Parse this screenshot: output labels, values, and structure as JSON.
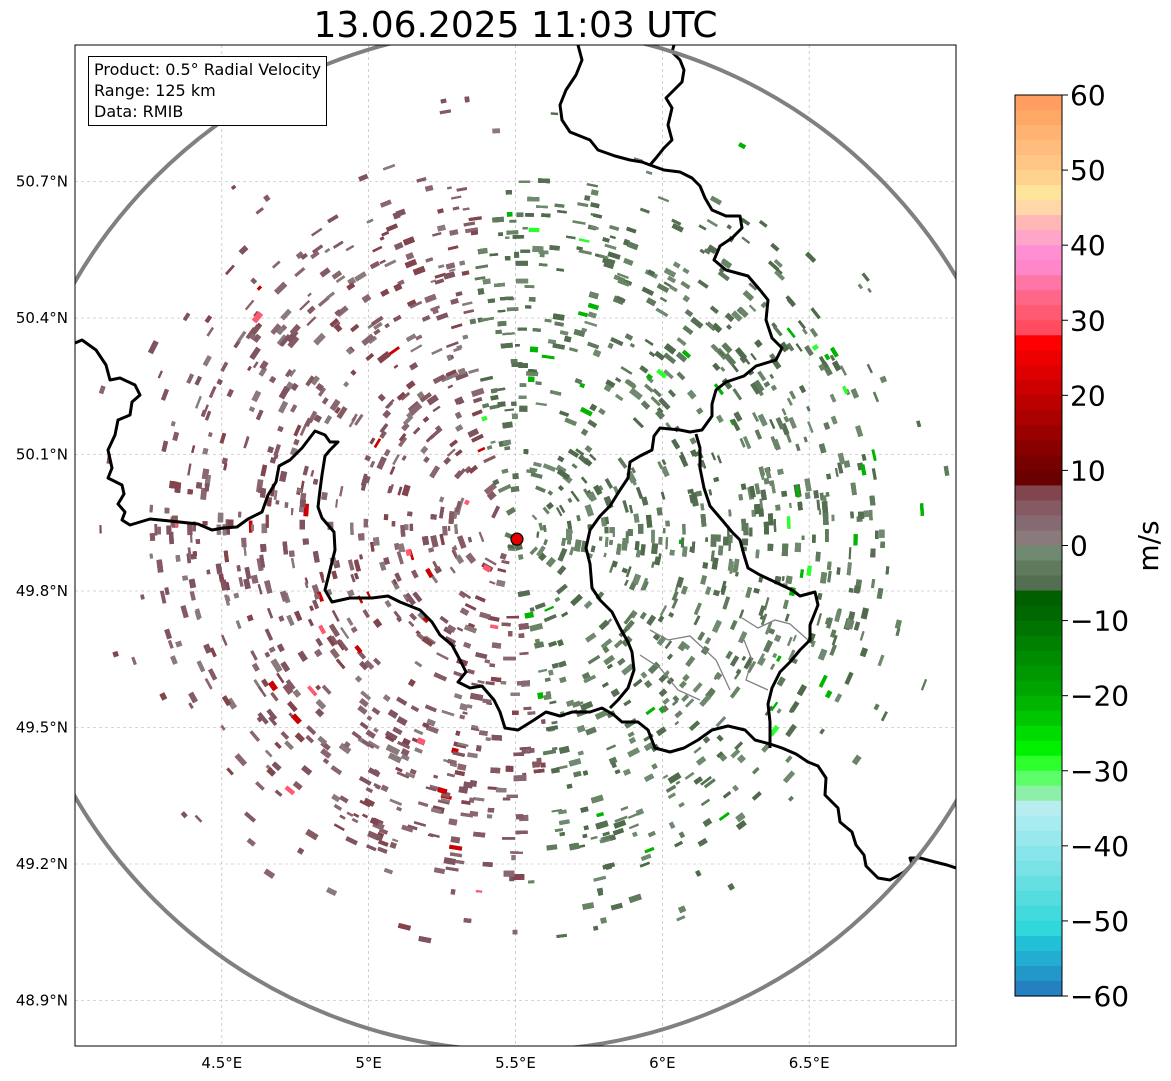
{
  "title": "13.06.2025 11:03 UTC",
  "info": {
    "product": "Product: 0.5° Radial Velocity",
    "range": "Range: 125 km",
    "source": "Data: RMIB"
  },
  "map": {
    "lon_range": [
      4.0,
      7.0
    ],
    "lat_range": [
      48.8,
      51.0
    ],
    "lon_ticks": [
      {
        "value": 4.5,
        "label": "4.5°E"
      },
      {
        "value": 5.0,
        "label": "5°E"
      },
      {
        "value": 5.5,
        "label": "5.5°E"
      },
      {
        "value": 6.0,
        "label": "6°E"
      },
      {
        "value": 6.5,
        "label": "6.5°E"
      }
    ],
    "lat_ticks": [
      {
        "value": 50.7,
        "label": "50.7°N"
      },
      {
        "value": 50.4,
        "label": "50.4°N"
      },
      {
        "value": 50.1,
        "label": "50.1°N"
      },
      {
        "value": 49.8,
        "label": "49.8°N"
      },
      {
        "value": 49.5,
        "label": "49.5°N"
      },
      {
        "value": 49.2,
        "label": "49.2°N"
      },
      {
        "value": 48.9,
        "label": "48.9°N"
      }
    ],
    "grid": true,
    "radar_site": {
      "lon": 5.505,
      "lat": 49.914
    },
    "range_km": 125,
    "colors": {
      "range_ring": "#808080",
      "border": "#000000",
      "sub_border": "#808080",
      "radar_marker": "#e00000",
      "inbound_tone": "#5f7a5c",
      "outbound_tone": "#855a63"
    }
  },
  "colorbar": {
    "label": "m/s",
    "min": -60,
    "max": 60,
    "ticks": [
      {
        "value": 60,
        "label": "60"
      },
      {
        "value": 50,
        "label": "50"
      },
      {
        "value": 40,
        "label": "40"
      },
      {
        "value": 30,
        "label": "30"
      },
      {
        "value": 20,
        "label": "20"
      },
      {
        "value": 10,
        "label": "10"
      },
      {
        "value": 0,
        "label": "0"
      },
      {
        "value": -10,
        "label": "−10"
      },
      {
        "value": -20,
        "label": "−20"
      },
      {
        "value": -30,
        "label": "−30"
      },
      {
        "value": -40,
        "label": "−40"
      },
      {
        "value": -50,
        "label": "−50"
      },
      {
        "value": -60,
        "label": "−60"
      }
    ],
    "bands": [
      {
        "from": 58,
        "to": 60,
        "color": "#ff9e5e"
      },
      {
        "from": 56,
        "to": 58,
        "color": "#ffa866"
      },
      {
        "from": 54,
        "to": 56,
        "color": "#ffb372"
      },
      {
        "from": 52,
        "to": 54,
        "color": "#ffbc7c"
      },
      {
        "from": 50,
        "to": 52,
        "color": "#ffc685"
      },
      {
        "from": 48,
        "to": 50,
        "color": "#ffd28e"
      },
      {
        "from": 46,
        "to": 48,
        "color": "#ffe59c"
      },
      {
        "from": 44,
        "to": 46,
        "color": "#ffd7a8"
      },
      {
        "from": 42,
        "to": 44,
        "color": "#ffb6b6"
      },
      {
        "from": 40,
        "to": 42,
        "color": "#ffa6c8"
      },
      {
        "from": 38,
        "to": 40,
        "color": "#ff8ed2"
      },
      {
        "from": 36,
        "to": 38,
        "color": "#ff86c8"
      },
      {
        "from": 34,
        "to": 36,
        "color": "#ff76a6"
      },
      {
        "from": 32,
        "to": 34,
        "color": "#ff6688"
      },
      {
        "from": 30,
        "to": 32,
        "color": "#ff5a72"
      },
      {
        "from": 28,
        "to": 30,
        "color": "#ff4c60"
      },
      {
        "from": 26,
        "to": 28,
        "color": "#ff0000"
      },
      {
        "from": 24,
        "to": 26,
        "color": "#ee0000"
      },
      {
        "from": 22,
        "to": 24,
        "color": "#de0000"
      },
      {
        "from": 20,
        "to": 22,
        "color": "#cc0000"
      },
      {
        "from": 18,
        "to": 20,
        "color": "#bb0000"
      },
      {
        "from": 16,
        "to": 18,
        "color": "#aa0000"
      },
      {
        "from": 14,
        "to": 16,
        "color": "#990000"
      },
      {
        "from": 12,
        "to": 14,
        "color": "#880000"
      },
      {
        "from": 10,
        "to": 12,
        "color": "#770000"
      },
      {
        "from": 8,
        "to": 10,
        "color": "#6a0000"
      },
      {
        "from": 6,
        "to": 8,
        "color": "#82444d"
      },
      {
        "from": 4,
        "to": 6,
        "color": "#855a63"
      },
      {
        "from": 2,
        "to": 4,
        "color": "#856a74"
      },
      {
        "from": 0,
        "to": 2,
        "color": "#8a7a7c"
      },
      {
        "from": -2,
        "to": 0,
        "color": "#6f8a70"
      },
      {
        "from": -4,
        "to": -2,
        "color": "#5f7a5c"
      },
      {
        "from": -6,
        "to": -4,
        "color": "#536e50"
      },
      {
        "from": -8,
        "to": -6,
        "color": "#006000"
      },
      {
        "from": -10,
        "to": -8,
        "color": "#006800"
      },
      {
        "from": -12,
        "to": -10,
        "color": "#007400"
      },
      {
        "from": -14,
        "to": -12,
        "color": "#008000"
      },
      {
        "from": -16,
        "to": -14,
        "color": "#008c00"
      },
      {
        "from": -18,
        "to": -16,
        "color": "#009800"
      },
      {
        "from": -20,
        "to": -18,
        "color": "#00a400"
      },
      {
        "from": -22,
        "to": -20,
        "color": "#00b400"
      },
      {
        "from": -24,
        "to": -22,
        "color": "#00c600"
      },
      {
        "from": -26,
        "to": -24,
        "color": "#00dc00"
      },
      {
        "from": -28,
        "to": -26,
        "color": "#00f000"
      },
      {
        "from": -30,
        "to": -28,
        "color": "#2cff2c"
      },
      {
        "from": -32,
        "to": -30,
        "color": "#5cff68"
      },
      {
        "from": -34,
        "to": -32,
        "color": "#8ef0a8"
      },
      {
        "from": -36,
        "to": -34,
        "color": "#b8eef0"
      },
      {
        "from": -38,
        "to": -36,
        "color": "#a8ecf0"
      },
      {
        "from": -40,
        "to": -38,
        "color": "#98e8ee"
      },
      {
        "from": -42,
        "to": -40,
        "color": "#88e6ea"
      },
      {
        "from": -44,
        "to": -42,
        "color": "#78e2e6"
      },
      {
        "from": -46,
        "to": -44,
        "color": "#66dfe2"
      },
      {
        "from": -48,
        "to": -46,
        "color": "#54dcdf"
      },
      {
        "from": -50,
        "to": -48,
        "color": "#42dadd"
      },
      {
        "from": -52,
        "to": -50,
        "color": "#30d8dc"
      },
      {
        "from": -54,
        "to": -52,
        "color": "#22c0d6"
      },
      {
        "from": -56,
        "to": -54,
        "color": "#22aed2"
      },
      {
        "from": -58,
        "to": -56,
        "color": "#2298c8"
      },
      {
        "from": -60,
        "to": -58,
        "color": "#2480c0"
      }
    ]
  }
}
